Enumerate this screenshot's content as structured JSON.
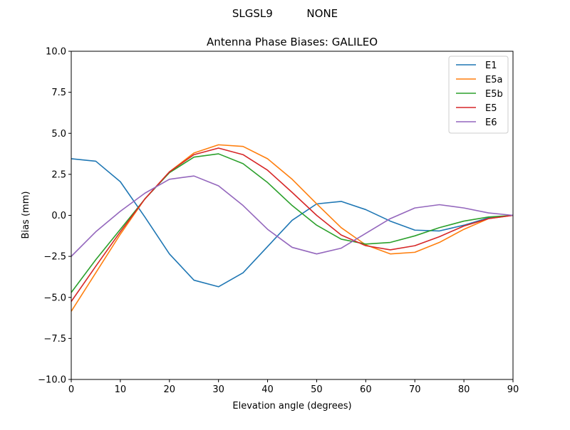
{
  "chart_data": {
    "type": "line",
    "suptitle": "SLGSL9          NONE",
    "title": "Antenna Phase Biases: GALILEO",
    "xlabel": "Elevation angle (degrees)",
    "ylabel": "Bias (mm)",
    "xlim": [
      0,
      90
    ],
    "ylim": [
      -10,
      10
    ],
    "xticks": [
      0,
      10,
      20,
      30,
      40,
      50,
      60,
      70,
      80,
      90
    ],
    "yticks": [
      -10.0,
      -7.5,
      -5.0,
      -2.5,
      0.0,
      2.5,
      5.0,
      7.5,
      10.0
    ],
    "ytick_labels": [
      "−10.0",
      "−7.5",
      "−5.0",
      "−2.5",
      "0.0",
      "2.5",
      "5.0",
      "7.5",
      "10.0"
    ],
    "grid": false,
    "legend_position": "top-right",
    "x": [
      0,
      5,
      10,
      15,
      20,
      25,
      30,
      35,
      40,
      45,
      50,
      55,
      60,
      65,
      70,
      75,
      80,
      85,
      90
    ],
    "series": [
      {
        "name": "E1",
        "color": "#1f77b4",
        "values": [
          3.45,
          3.3,
          2.05,
          -0.1,
          -2.35,
          -3.95,
          -4.35,
          -3.5,
          -1.9,
          -0.3,
          0.7,
          0.85,
          0.35,
          -0.35,
          -0.9,
          -0.95,
          -0.6,
          -0.15,
          0.0
        ]
      },
      {
        "name": "E5a",
        "color": "#ff7f0e",
        "values": [
          -5.85,
          -3.5,
          -1.15,
          1.0,
          2.65,
          3.8,
          4.3,
          4.2,
          3.45,
          2.2,
          0.7,
          -0.75,
          -1.8,
          -2.35,
          -2.25,
          -1.65,
          -0.85,
          -0.2,
          0.0
        ]
      },
      {
        "name": "E5b",
        "color": "#2ca02c",
        "values": [
          -4.7,
          -2.7,
          -0.85,
          1.0,
          2.6,
          3.55,
          3.75,
          3.15,
          2.0,
          0.6,
          -0.6,
          -1.45,
          -1.75,
          -1.65,
          -1.25,
          -0.75,
          -0.35,
          -0.1,
          0.0
        ]
      },
      {
        "name": "E5",
        "color": "#d62728",
        "values": [
          -5.25,
          -3.1,
          -1.0,
          1.0,
          2.65,
          3.7,
          4.1,
          3.7,
          2.75,
          1.4,
          0.0,
          -1.2,
          -1.85,
          -2.1,
          -1.85,
          -1.3,
          -0.65,
          -0.2,
          0.0
        ]
      },
      {
        "name": "E6",
        "color": "#9467bd",
        "values": [
          -2.5,
          -1.0,
          0.25,
          1.35,
          2.2,
          2.4,
          1.8,
          0.6,
          -0.85,
          -1.95,
          -2.35,
          -2.0,
          -1.1,
          -0.2,
          0.45,
          0.65,
          0.45,
          0.15,
          0.0
        ]
      }
    ]
  }
}
